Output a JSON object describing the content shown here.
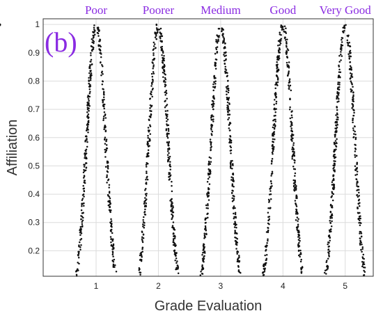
{
  "chart_data": {
    "type": "scatter",
    "panel_label": "(b)",
    "xlabel": "Grade Evaluation",
    "ylabel": "Affiliation",
    "xlim": [
      0.15,
      5.45
    ],
    "ylim": [
      0.11,
      1.02
    ],
    "x_ticks": [
      1,
      2,
      3,
      4,
      5
    ],
    "y_ticks": [
      0.2,
      0.3,
      0.4,
      0.5,
      0.6,
      0.7,
      0.8,
      0.9,
      1
    ],
    "grid": true,
    "grades": [
      {
        "label": "Poor",
        "center": 1
      },
      {
        "label": "Poorer",
        "center": 2
      },
      {
        "label": "Medium",
        "center": 3
      },
      {
        "label": "Good",
        "center": 4
      },
      {
        "label": "Very Good",
        "center": 5
      }
    ],
    "membership_function": "exp(-(x - center)^2 / (2 * sigma^2))",
    "sigma": 0.15,
    "points_per_grade": 400,
    "colors": {
      "points": "#111111",
      "grade_labels": "#8a2be2",
      "panel_label": "#8a2be2",
      "grid": "#dcdcdc",
      "axes": "#333333"
    }
  }
}
